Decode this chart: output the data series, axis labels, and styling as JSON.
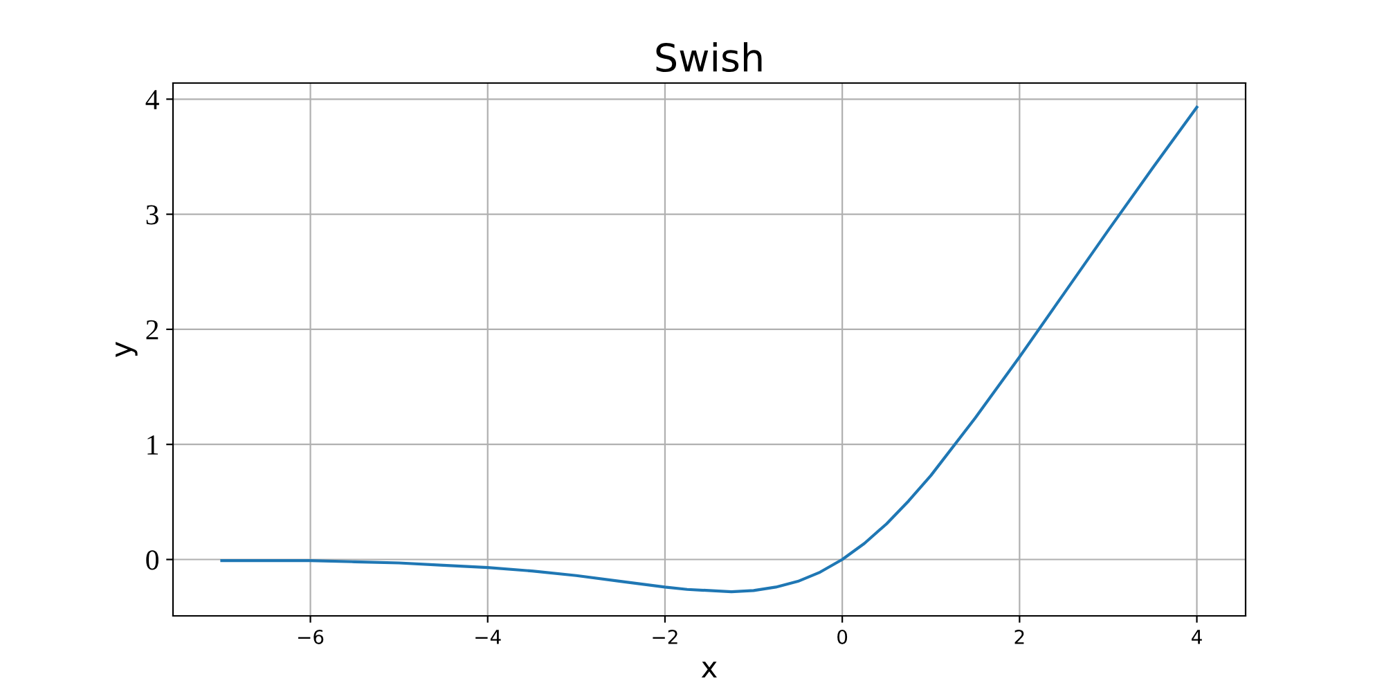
{
  "chart_data": {
    "type": "line",
    "title": "Swish",
    "xlabel": "x",
    "ylabel": "y",
    "x": [
      -7,
      -6.5,
      -6,
      -5.5,
      -5,
      -4.5,
      -4,
      -3.5,
      -3,
      -2.5,
      -2,
      -1.75,
      -1.5,
      -1.25,
      -1,
      -0.75,
      -0.5,
      -0.25,
      0,
      0.25,
      0.5,
      0.75,
      1,
      1.5,
      2,
      2.5,
      3,
      3.5,
      4
    ],
    "series": [
      {
        "color": "#1f77b4",
        "values": [
          -0.01,
          -0.01,
          -0.01,
          -0.02,
          -0.03,
          -0.05,
          -0.07,
          -0.1,
          -0.14,
          -0.19,
          -0.24,
          -0.26,
          -0.27,
          -0.28,
          -0.27,
          -0.24,
          -0.19,
          -0.11,
          0,
          0.14,
          0.31,
          0.51,
          0.73,
          1.23,
          1.76,
          2.31,
          2.86,
          3.4,
          3.93
        ]
      }
    ],
    "xlim": [
      -7.55,
      4.55
    ],
    "ylim": [
      -0.49,
      4.14
    ],
    "xticks": [
      {
        "value": -6,
        "label": "−6"
      },
      {
        "value": -4,
        "label": "−4"
      },
      {
        "value": -2,
        "label": "−2"
      },
      0,
      2,
      4
    ],
    "yticks": [
      0,
      1,
      2,
      3,
      4
    ],
    "grid": true,
    "marker": "none",
    "line_style": "solid",
    "legend": false
  }
}
